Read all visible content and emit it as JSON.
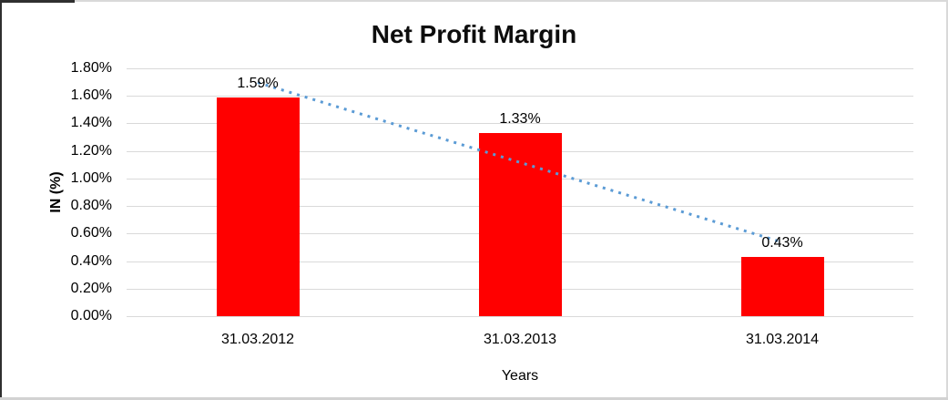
{
  "chart_data": {
    "type": "bar",
    "title": "Net Profit Margin",
    "categories": [
      "31.03.2012",
      "31.03.2013",
      "31.03.2014"
    ],
    "values": [
      1.59,
      1.33,
      0.43
    ],
    "data_labels": [
      "1.59%",
      "1.33%",
      "0.43%"
    ],
    "xlabel": "Years",
    "ylabel": "IN (%)",
    "ylim": [
      0,
      1.8
    ],
    "ytick_step": 0.2,
    "ytick_labels": [
      "1.80%",
      "1.60%",
      "1.40%",
      "1.20%",
      "1.00%",
      "0.80%",
      "0.60%",
      "0.40%",
      "0.20%",
      "0.00%"
    ],
    "grid": true,
    "legend": "none",
    "series_count": 1,
    "trendline": {
      "style": "dotted",
      "fit": "linear"
    },
    "colors": {
      "bar": "#FF0000",
      "trendline": "#5B9BD5",
      "gridline": "#D9D9D9",
      "text": "#000000"
    }
  }
}
